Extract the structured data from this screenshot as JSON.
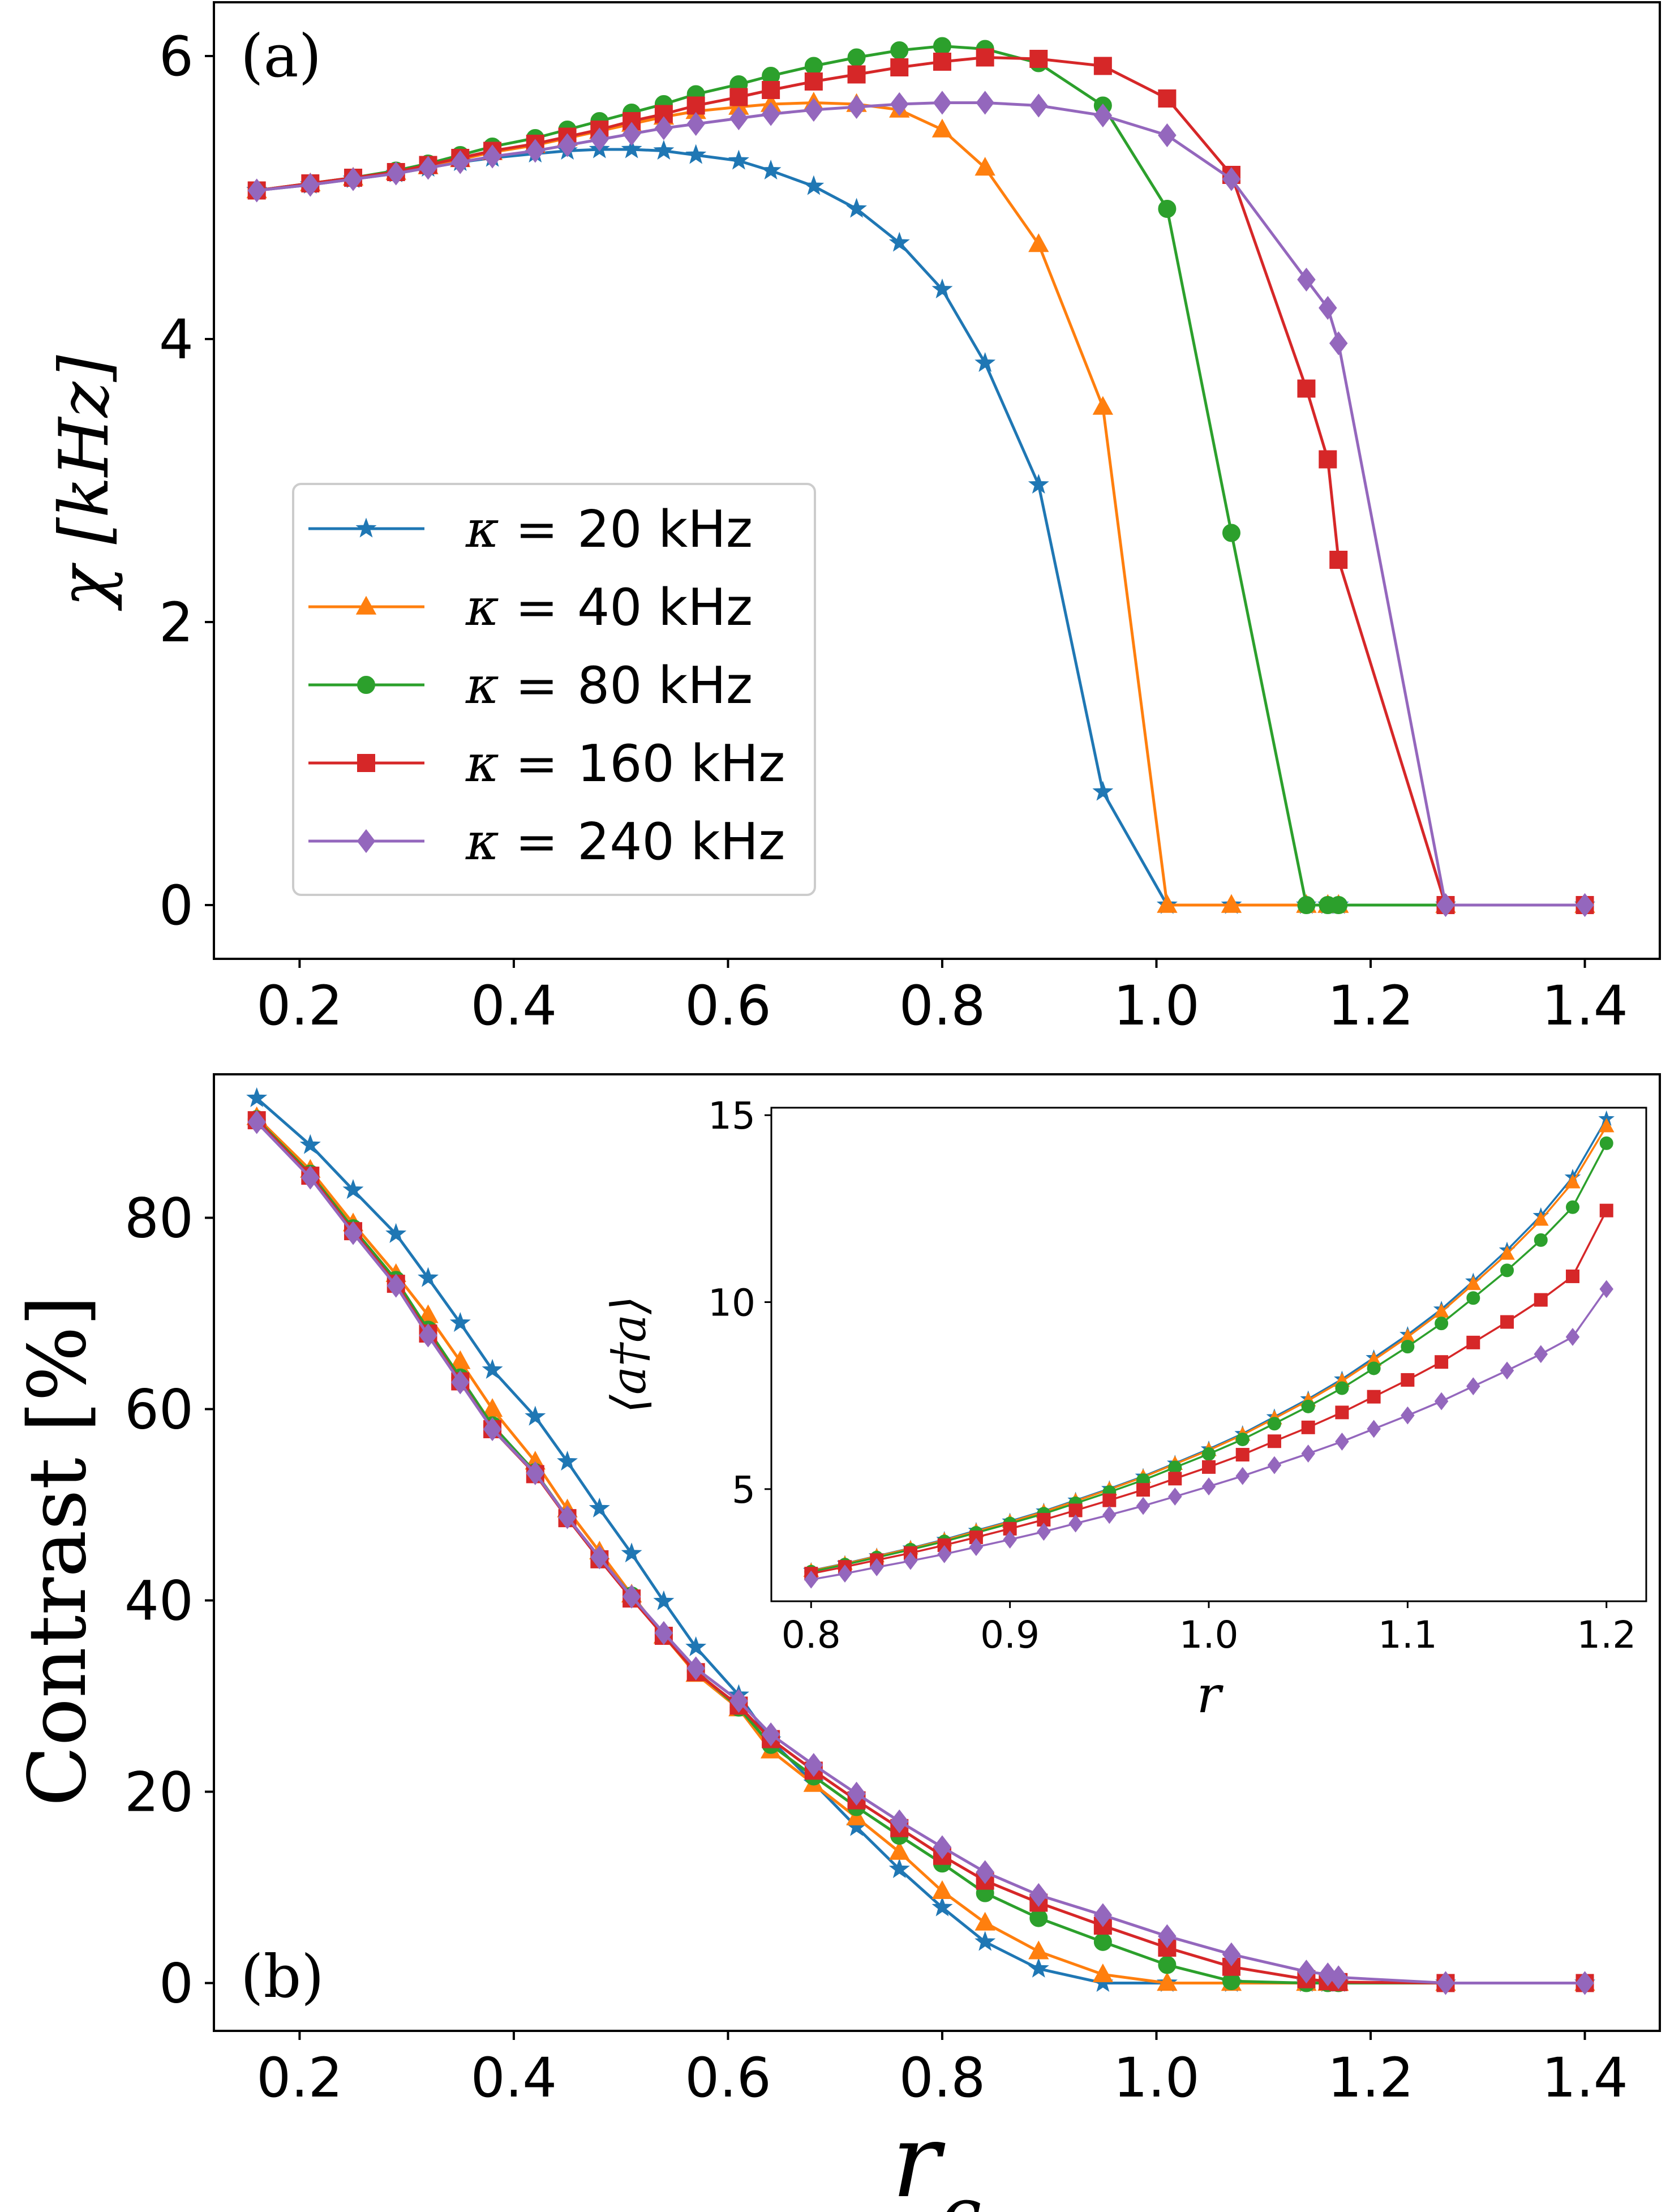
{
  "figure": {
    "colors": {
      "20": "#1f77b4",
      "40": "#ff7f0e",
      "80": "#2ca02c",
      "160": "#d62728",
      "240": "#9467bd"
    },
    "markers": {
      "20": "star",
      "40": "triangle",
      "80": "circle",
      "160": "square",
      "240": "diamond"
    }
  },
  "chart_data": [
    {
      "id": "a",
      "type": "line",
      "panel_label": "(a)",
      "xlabel": "",
      "ylabel": "χ [kHz]",
      "xlim": [
        0.12,
        1.47
      ],
      "ylim": [
        -0.38,
        6.38
      ],
      "xticks": [
        0.2,
        0.4,
        0.6,
        0.8,
        1.0,
        1.2,
        1.4
      ],
      "xtick_labels": [
        "0.2",
        "0.4",
        "0.6",
        "0.8",
        "1.0",
        "1.2",
        "1.4"
      ],
      "yticks": [
        0,
        2,
        4,
        6
      ],
      "ytick_labels": [
        "0",
        "2",
        "4",
        "6"
      ],
      "legend_position": "center-left",
      "legend": [
        {
          "key": "20",
          "prefix": "κ =",
          "value": "20 kHz"
        },
        {
          "key": "40",
          "prefix": "κ =",
          "value": "40 kHz"
        },
        {
          "key": "80",
          "prefix": "κ =",
          "value": "80 kHz"
        },
        {
          "key": "160",
          "prefix": "κ =",
          "value": "160 kHz"
        },
        {
          "key": "240",
          "prefix": "κ =",
          "value": "240 kHz"
        }
      ],
      "series": [
        {
          "key": "20",
          "x": [
            0.16,
            0.21,
            0.25,
            0.29,
            0.32,
            0.35,
            0.38,
            0.42,
            0.45,
            0.48,
            0.51,
            0.54,
            0.57,
            0.61,
            0.64,
            0.68,
            0.72,
            0.76,
            0.8,
            0.84,
            0.89,
            0.95,
            1.01,
            1.07,
            1.14,
            1.16,
            1.17,
            1.27,
            1.4
          ],
          "y": [
            5.05,
            5.09,
            5.13,
            5.17,
            5.21,
            5.25,
            5.28,
            5.31,
            5.33,
            5.34,
            5.34,
            5.33,
            5.3,
            5.26,
            5.19,
            5.08,
            4.92,
            4.68,
            4.35,
            3.83,
            2.97,
            0.8,
            0,
            0,
            0,
            0,
            0,
            0,
            0
          ]
        },
        {
          "key": "40",
          "x": [
            0.16,
            0.21,
            0.25,
            0.29,
            0.32,
            0.35,
            0.38,
            0.42,
            0.45,
            0.48,
            0.51,
            0.54,
            0.57,
            0.61,
            0.64,
            0.68,
            0.72,
            0.76,
            0.8,
            0.84,
            0.89,
            0.95,
            1.01,
            1.07,
            1.14,
            1.16,
            1.17,
            1.27,
            1.4
          ],
          "y": [
            5.05,
            5.1,
            5.14,
            5.18,
            5.22,
            5.27,
            5.32,
            5.37,
            5.42,
            5.47,
            5.52,
            5.57,
            5.61,
            5.64,
            5.66,
            5.67,
            5.66,
            5.62,
            5.48,
            5.21,
            4.67,
            3.52,
            0,
            0,
            0,
            0,
            0,
            0,
            0
          ]
        },
        {
          "key": "80",
          "x": [
            0.16,
            0.21,
            0.25,
            0.29,
            0.32,
            0.35,
            0.38,
            0.42,
            0.45,
            0.48,
            0.51,
            0.54,
            0.57,
            0.61,
            0.64,
            0.68,
            0.72,
            0.76,
            0.8,
            0.84,
            0.89,
            0.95,
            1.01,
            1.07,
            1.14,
            1.16,
            1.17,
            1.27,
            1.4
          ],
          "y": [
            5.05,
            5.1,
            5.14,
            5.19,
            5.24,
            5.3,
            5.36,
            5.42,
            5.48,
            5.54,
            5.6,
            5.66,
            5.73,
            5.8,
            5.86,
            5.93,
            5.99,
            6.04,
            6.07,
            6.05,
            5.95,
            5.65,
            4.92,
            2.63,
            0,
            0,
            0,
            0,
            0
          ]
        },
        {
          "key": "160",
          "x": [
            0.16,
            0.21,
            0.25,
            0.29,
            0.32,
            0.35,
            0.38,
            0.42,
            0.45,
            0.48,
            0.51,
            0.54,
            0.57,
            0.61,
            0.64,
            0.68,
            0.72,
            0.76,
            0.8,
            0.84,
            0.89,
            0.95,
            1.01,
            1.07,
            1.14,
            1.16,
            1.17,
            1.27,
            1.4
          ],
          "y": [
            5.05,
            5.1,
            5.14,
            5.18,
            5.23,
            5.28,
            5.33,
            5.38,
            5.43,
            5.48,
            5.54,
            5.59,
            5.65,
            5.71,
            5.76,
            5.82,
            5.87,
            5.92,
            5.96,
            5.99,
            5.98,
            5.93,
            5.7,
            5.16,
            3.65,
            3.15,
            2.44,
            0,
            0
          ]
        },
        {
          "key": "240",
          "x": [
            0.16,
            0.21,
            0.25,
            0.29,
            0.32,
            0.35,
            0.38,
            0.42,
            0.45,
            0.48,
            0.51,
            0.54,
            0.57,
            0.61,
            0.64,
            0.68,
            0.72,
            0.76,
            0.8,
            0.84,
            0.89,
            0.95,
            1.01,
            1.07,
            1.14,
            1.16,
            1.17,
            1.27,
            1.4
          ],
          "y": [
            5.05,
            5.09,
            5.13,
            5.17,
            5.21,
            5.25,
            5.29,
            5.33,
            5.37,
            5.41,
            5.45,
            5.49,
            5.52,
            5.56,
            5.59,
            5.62,
            5.64,
            5.66,
            5.67,
            5.67,
            5.65,
            5.58,
            5.44,
            5.13,
            4.42,
            4.22,
            3.97,
            0,
            0
          ]
        }
      ]
    },
    {
      "id": "b",
      "type": "line",
      "panel_label": "(b)",
      "xlabel": "r_c",
      "ylabel": "Contrast [%]",
      "xlim": [
        0.12,
        1.47
      ],
      "ylim": [
        -5,
        95
      ],
      "xticks": [
        0.2,
        0.4,
        0.6,
        0.8,
        1.0,
        1.2,
        1.4
      ],
      "xtick_labels": [
        "0.2",
        "0.4",
        "0.6",
        "0.8",
        "1.0",
        "1.2",
        "1.4"
      ],
      "yticks": [
        0,
        20,
        40,
        60,
        80
      ],
      "ytick_labels": [
        "0",
        "20",
        "40",
        "60",
        "80"
      ],
      "series": [
        {
          "key": "20",
          "x": [
            0.16,
            0.21,
            0.25,
            0.29,
            0.32,
            0.35,
            0.38,
            0.42,
            0.45,
            0.48,
            0.51,
            0.54,
            0.57,
            0.61,
            0.64,
            0.68,
            0.72,
            0.76,
            0.8,
            0.84,
            0.89,
            0.95,
            1.01,
            1.07,
            1.14,
            1.16,
            1.17,
            1.27,
            1.4
          ],
          "y": [
            92.5,
            87.6,
            82.9,
            78.3,
            73.7,
            69.0,
            64.1,
            59.2,
            54.5,
            49.6,
            44.9,
            39.9,
            35.1,
            30.1,
            25.4,
            20.9,
            16.3,
            11.9,
            7.9,
            4.3,
            1.5,
            0,
            0,
            0,
            0,
            0,
            0,
            0,
            0
          ]
        },
        {
          "key": "40",
          "x": [
            0.16,
            0.21,
            0.25,
            0.29,
            0.32,
            0.35,
            0.38,
            0.42,
            0.45,
            0.48,
            0.51,
            0.54,
            0.57,
            0.61,
            0.64,
            0.68,
            0.72,
            0.76,
            0.8,
            0.84,
            0.89,
            0.95,
            1.01,
            1.07,
            1.14,
            1.16,
            1.17,
            1.27,
            1.4
          ],
          "y": [
            90.5,
            85.0,
            79.4,
            74.1,
            69.8,
            65.0,
            60.0,
            54.5,
            49.5,
            45.1,
            40.6,
            36.3,
            32.3,
            28.7,
            24.3,
            20.8,
            17.3,
            13.7,
            9.6,
            6.3,
            3.3,
            0.9,
            0,
            0,
            0,
            0,
            0,
            0,
            0
          ]
        },
        {
          "key": "80",
          "x": [
            0.16,
            0.21,
            0.25,
            0.29,
            0.32,
            0.35,
            0.38,
            0.42,
            0.45,
            0.48,
            0.51,
            0.54,
            0.57,
            0.61,
            0.64,
            0.68,
            0.72,
            0.76,
            0.8,
            0.84,
            0.89,
            0.95,
            1.01,
            1.07,
            1.14,
            1.16,
            1.17,
            1.27,
            1.4
          ],
          "y": [
            90.3,
            84.6,
            78.9,
            73.5,
            68.3,
            63.3,
            58.3,
            53.4,
            48.7,
            44.4,
            40.5,
            36.4,
            32.6,
            28.8,
            24.9,
            21.6,
            18.4,
            15.4,
            12.5,
            9.4,
            6.8,
            4.3,
            1.9,
            0.2,
            0,
            0,
            0,
            0,
            0
          ]
        },
        {
          "key": "160",
          "x": [
            0.16,
            0.21,
            0.25,
            0.29,
            0.32,
            0.35,
            0.38,
            0.42,
            0.45,
            0.48,
            0.51,
            0.54,
            0.57,
            0.61,
            0.64,
            0.68,
            0.72,
            0.76,
            0.8,
            0.84,
            0.89,
            0.95,
            1.01,
            1.07,
            1.14,
            1.16,
            1.17,
            1.27,
            1.4
          ],
          "y": [
            90.2,
            84.4,
            78.6,
            73.1,
            67.9,
            62.9,
            57.9,
            53.2,
            48.6,
            44.3,
            40.2,
            36.3,
            32.5,
            29.0,
            25.5,
            22.2,
            19.1,
            16.2,
            13.3,
            10.7,
            8.4,
            6.0,
            3.7,
            1.7,
            0.4,
            0.2,
            0.1,
            0,
            0
          ]
        },
        {
          "key": "240",
          "x": [
            0.16,
            0.21,
            0.25,
            0.29,
            0.32,
            0.35,
            0.38,
            0.42,
            0.45,
            0.48,
            0.51,
            0.54,
            0.57,
            0.61,
            0.64,
            0.68,
            0.72,
            0.76,
            0.8,
            0.84,
            0.89,
            0.95,
            1.01,
            1.07,
            1.14,
            1.16,
            1.17,
            1.27,
            1.4
          ],
          "y": [
            90.0,
            84.2,
            78.4,
            72.9,
            67.7,
            62.8,
            57.9,
            53.3,
            48.7,
            44.5,
            40.4,
            36.6,
            32.9,
            29.5,
            26.0,
            22.8,
            19.8,
            16.9,
            14.2,
            11.6,
            9.2,
            7.1,
            4.9,
            3.0,
            1.2,
            0.9,
            0.6,
            0,
            0
          ]
        }
      ]
    },
    {
      "id": "inset",
      "type": "line",
      "xlabel": "r",
      "ylabel": "⟨a†a⟩",
      "xlim": [
        0.78,
        1.22
      ],
      "ylim": [
        2.0,
        15.2
      ],
      "xticks": [
        0.8,
        0.9,
        1.0,
        1.1,
        1.2
      ],
      "xtick_labels": [
        "0.8",
        "0.9",
        "1.0",
        "1.1",
        "1.2"
      ],
      "yticks": [
        5,
        10,
        15
      ],
      "ytick_labels": [
        "5",
        "10",
        "15"
      ],
      "series": [
        {
          "key": "20",
          "x": [
            0.8,
            0.817,
            0.833,
            0.85,
            0.867,
            0.883,
            0.9,
            0.917,
            0.933,
            0.95,
            0.967,
            0.983,
            1.0,
            1.017,
            1.033,
            1.05,
            1.067,
            1.083,
            1.1,
            1.117,
            1.133,
            1.15,
            1.167,
            1.183,
            1.2
          ],
          "y": [
            2.82,
            3.01,
            3.21,
            3.42,
            3.65,
            3.89,
            4.14,
            4.41,
            4.7,
            5.01,
            5.34,
            5.69,
            6.07,
            6.48,
            6.93,
            7.41,
            7.94,
            8.51,
            9.13,
            9.81,
            10.56,
            11.39,
            12.31,
            13.34,
            14.9
          ]
        },
        {
          "key": "40",
          "x": [
            0.8,
            0.817,
            0.833,
            0.85,
            0.867,
            0.883,
            0.9,
            0.917,
            0.933,
            0.95,
            0.967,
            0.983,
            1.0,
            1.017,
            1.033,
            1.05,
            1.067,
            1.083,
            1.1,
            1.117,
            1.133,
            1.15,
            1.167,
            1.183,
            1.2
          ],
          "y": [
            2.81,
            3.0,
            3.2,
            3.41,
            3.63,
            3.87,
            4.12,
            4.39,
            4.68,
            4.99,
            5.32,
            5.67,
            6.04,
            6.45,
            6.89,
            7.37,
            7.89,
            8.45,
            9.07,
            9.74,
            10.48,
            11.29,
            12.2,
            13.2,
            14.7
          ]
        },
        {
          "key": "80",
          "x": [
            0.8,
            0.817,
            0.833,
            0.85,
            0.867,
            0.883,
            0.9,
            0.917,
            0.933,
            0.95,
            0.967,
            0.983,
            1.0,
            1.017,
            1.033,
            1.05,
            1.067,
            1.083,
            1.1,
            1.117,
            1.133,
            1.15,
            1.167,
            1.183,
            1.2
          ],
          "y": [
            2.79,
            2.98,
            3.17,
            3.38,
            3.6,
            3.83,
            4.08,
            4.34,
            4.62,
            4.92,
            5.24,
            5.58,
            5.94,
            6.33,
            6.75,
            7.21,
            7.7,
            8.23,
            8.81,
            9.43,
            10.11,
            10.85,
            11.66,
            12.54,
            14.25
          ]
        },
        {
          "key": "160",
          "x": [
            0.8,
            0.817,
            0.833,
            0.85,
            0.867,
            0.883,
            0.9,
            0.917,
            0.933,
            0.95,
            0.967,
            0.983,
            1.0,
            1.017,
            1.033,
            1.05,
            1.067,
            1.083,
            1.1,
            1.117,
            1.133,
            1.15,
            1.167,
            1.183,
            1.2
          ],
          "y": [
            2.74,
            2.92,
            3.1,
            3.29,
            3.5,
            3.71,
            3.94,
            4.18,
            4.43,
            4.7,
            4.98,
            5.28,
            5.59,
            5.92,
            6.28,
            6.65,
            7.05,
            7.47,
            7.92,
            8.4,
            8.92,
            9.47,
            10.06,
            10.69,
            12.45
          ]
        },
        {
          "key": "240",
          "x": [
            0.8,
            0.817,
            0.833,
            0.85,
            0.867,
            0.883,
            0.9,
            0.917,
            0.933,
            0.95,
            0.967,
            0.983,
            1.0,
            1.017,
            1.033,
            1.05,
            1.067,
            1.083,
            1.1,
            1.117,
            1.133,
            1.15,
            1.167,
            1.183,
            1.2
          ],
          "y": [
            2.58,
            2.74,
            2.91,
            3.08,
            3.26,
            3.45,
            3.65,
            3.86,
            4.08,
            4.31,
            4.55,
            4.8,
            5.07,
            5.35,
            5.64,
            5.95,
            6.27,
            6.61,
            6.97,
            7.35,
            7.75,
            8.17,
            8.61,
            9.07,
            10.35
          ]
        }
      ]
    }
  ]
}
